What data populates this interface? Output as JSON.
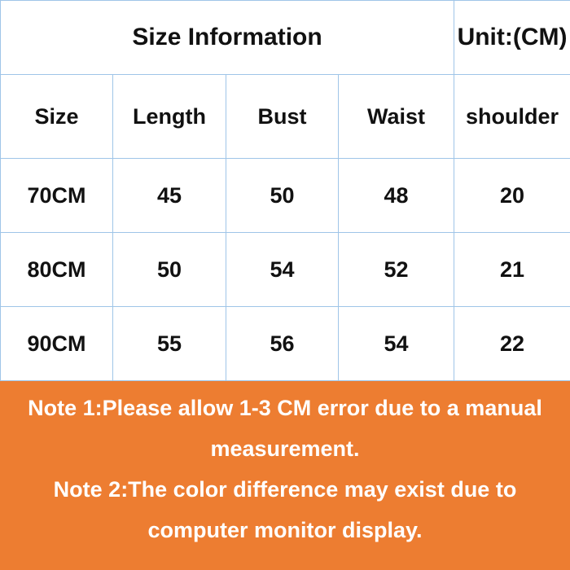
{
  "header": {
    "title": "Size Information",
    "unit": "Unit:(CM)"
  },
  "table": {
    "columns": [
      "Size",
      "Length",
      "Bust",
      "Waist",
      "shoulder"
    ],
    "rows": [
      [
        "70CM",
        45,
        50,
        48,
        20
      ],
      [
        "80CM",
        50,
        54,
        52,
        21
      ],
      [
        "90CM",
        55,
        56,
        54,
        22
      ]
    ]
  },
  "notes": [
    "Note 1:Please allow 1-3 CM error due to a manual measurement.",
    "Note 2:The color difference may exist due to computer monitor display."
  ]
}
